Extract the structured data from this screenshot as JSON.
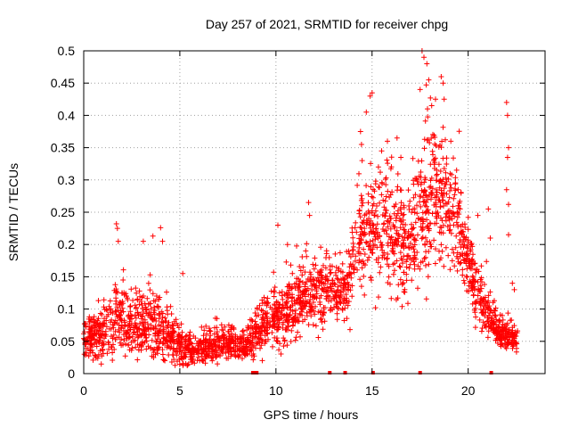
{
  "chart_data": {
    "type": "scatter",
    "title": "Day 257 of 2021, SRMTID for receiver chpg",
    "xlabel": "GPS time / hours",
    "ylabel": "SRMTID / TECUs",
    "xlim": [
      0,
      24
    ],
    "ylim": [
      0,
      0.5
    ],
    "grid": true,
    "marker": "+",
    "color": "#ff0000",
    "x_ticks": [
      {
        "value": 0,
        "label": "0"
      },
      {
        "value": 5,
        "label": "5"
      },
      {
        "value": 10,
        "label": "10"
      },
      {
        "value": 15,
        "label": "15"
      },
      {
        "value": 20,
        "label": "20"
      }
    ],
    "y_ticks": [
      {
        "value": 0,
        "label": "0"
      },
      {
        "value": 0.05,
        "label": "0.05"
      },
      {
        "value": 0.1,
        "label": "0.1"
      },
      {
        "value": 0.15,
        "label": "0.15"
      },
      {
        "value": 0.2,
        "label": "0.2"
      },
      {
        "value": 0.25,
        "label": "0.25"
      },
      {
        "value": 0.3,
        "label": "0.3"
      },
      {
        "value": 0.35,
        "label": "0.35"
      },
      {
        "value": 0.4,
        "label": "0.4"
      },
      {
        "value": 0.45,
        "label": "0.45"
      },
      {
        "value": 0.5,
        "label": "0.5"
      }
    ],
    "envelope": [
      {
        "x": 0.0,
        "base": 0.055,
        "spread": 0.02
      },
      {
        "x": 1.0,
        "base": 0.06,
        "spread": 0.03
      },
      {
        "x": 1.7,
        "base": 0.09,
        "spread": 0.045
      },
      {
        "x": 2.5,
        "base": 0.07,
        "spread": 0.04
      },
      {
        "x": 3.5,
        "base": 0.08,
        "spread": 0.045
      },
      {
        "x": 4.5,
        "base": 0.05,
        "spread": 0.03
      },
      {
        "x": 5.5,
        "base": 0.035,
        "spread": 0.018
      },
      {
        "x": 7.0,
        "base": 0.045,
        "spread": 0.02
      },
      {
        "x": 8.5,
        "base": 0.045,
        "spread": 0.018
      },
      {
        "x": 9.5,
        "base": 0.08,
        "spread": 0.03
      },
      {
        "x": 10.5,
        "base": 0.09,
        "spread": 0.04
      },
      {
        "x": 11.5,
        "base": 0.12,
        "spread": 0.04
      },
      {
        "x": 12.5,
        "base": 0.13,
        "spread": 0.04
      },
      {
        "x": 13.5,
        "base": 0.12,
        "spread": 0.03
      },
      {
        "x": 14.3,
        "base": 0.2,
        "spread": 0.07
      },
      {
        "x": 15.0,
        "base": 0.24,
        "spread": 0.08
      },
      {
        "x": 16.0,
        "base": 0.22,
        "spread": 0.08
      },
      {
        "x": 17.0,
        "base": 0.2,
        "spread": 0.07
      },
      {
        "x": 17.8,
        "base": 0.27,
        "spread": 0.1
      },
      {
        "x": 18.8,
        "base": 0.26,
        "spread": 0.08
      },
      {
        "x": 19.6,
        "base": 0.22,
        "spread": 0.05
      },
      {
        "x": 20.3,
        "base": 0.13,
        "spread": 0.04
      },
      {
        "x": 21.0,
        "base": 0.09,
        "spread": 0.03
      },
      {
        "x": 21.7,
        "base": 0.06,
        "spread": 0.02
      },
      {
        "x": 22.5,
        "base": 0.055,
        "spread": 0.015
      }
    ],
    "x_range_points": [
      0.0,
      22.6
    ],
    "n_points": 2600,
    "gap_starts": [
      22.6
    ],
    "outliers": [
      {
        "x": 1.7,
        "y": 0.232
      },
      {
        "x": 1.75,
        "y": 0.225
      },
      {
        "x": 1.8,
        "y": 0.205
      },
      {
        "x": 2.05,
        "y": 0.145
      },
      {
        "x": 3.1,
        "y": 0.205
      },
      {
        "x": 3.6,
        "y": 0.213
      },
      {
        "x": 4.0,
        "y": 0.226
      },
      {
        "x": 4.1,
        "y": 0.205
      },
      {
        "x": 5.15,
        "y": 0.155
      },
      {
        "x": 10.1,
        "y": 0.23
      },
      {
        "x": 10.6,
        "y": 0.2
      },
      {
        "x": 11.55,
        "y": 0.19
      },
      {
        "x": 11.7,
        "y": 0.265
      },
      {
        "x": 11.75,
        "y": 0.245
      },
      {
        "x": 14.4,
        "y": 0.375
      },
      {
        "x": 14.45,
        "y": 0.355
      },
      {
        "x": 14.7,
        "y": 0.405
      },
      {
        "x": 14.9,
        "y": 0.43
      },
      {
        "x": 15.0,
        "y": 0.435
      },
      {
        "x": 15.5,
        "y": 0.345
      },
      {
        "x": 15.8,
        "y": 0.36
      },
      {
        "x": 16.3,
        "y": 0.365
      },
      {
        "x": 16.5,
        "y": 0.335
      },
      {
        "x": 17.5,
        "y": 0.44
      },
      {
        "x": 17.6,
        "y": 0.5
      },
      {
        "x": 17.7,
        "y": 0.49
      },
      {
        "x": 17.85,
        "y": 0.48
      },
      {
        "x": 17.95,
        "y": 0.455
      },
      {
        "x": 18.1,
        "y": 0.415
      },
      {
        "x": 18.3,
        "y": 0.425
      },
      {
        "x": 18.6,
        "y": 0.46
      },
      {
        "x": 18.7,
        "y": 0.45
      },
      {
        "x": 18.75,
        "y": 0.425
      },
      {
        "x": 19.1,
        "y": 0.36
      },
      {
        "x": 19.4,
        "y": 0.315
      },
      {
        "x": 20.5,
        "y": 0.245
      },
      {
        "x": 21.05,
        "y": 0.255
      },
      {
        "x": 21.15,
        "y": 0.21
      },
      {
        "x": 22.0,
        "y": 0.42
      },
      {
        "x": 22.05,
        "y": 0.4
      },
      {
        "x": 22.1,
        "y": 0.35
      },
      {
        "x": 22.05,
        "y": 0.335
      },
      {
        "x": 22.0,
        "y": 0.285
      },
      {
        "x": 22.1,
        "y": 0.262
      },
      {
        "x": 22.1,
        "y": 0.215
      },
      {
        "x": 22.3,
        "y": 0.14
      },
      {
        "x": 22.4,
        "y": 0.13
      }
    ],
    "baseline_marks": [
      8.8,
      8.9,
      9.0,
      12.8,
      13.6,
      15.05,
      17.5,
      21.2
    ]
  }
}
